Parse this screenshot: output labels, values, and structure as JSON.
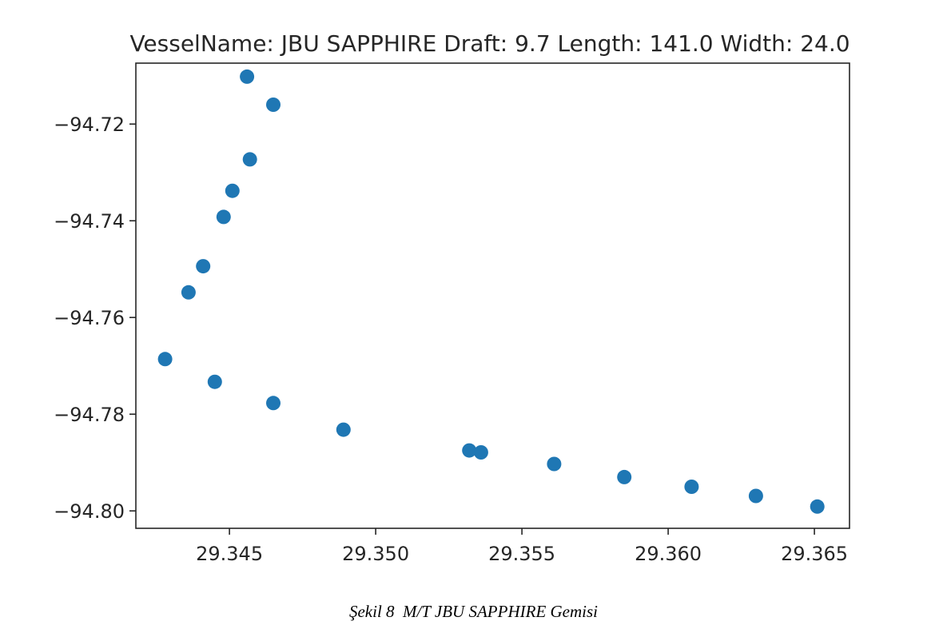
{
  "chart_data": {
    "type": "scatter",
    "title": "VesselName: JBU SAPPHIRE Draft: 9.7 Length: 141.0 Width: 24.0",
    "xlabel": "",
    "ylabel": "",
    "xlim": [
      29.3418,
      29.3662
    ],
    "ylim": [
      -94.8036,
      -94.7074
    ],
    "xticks": [
      29.345,
      29.35,
      29.355,
      29.36,
      29.365
    ],
    "xtick_labels": [
      "29.345",
      "29.350",
      "29.355",
      "29.360",
      "29.365"
    ],
    "yticks": [
      -94.72,
      -94.74,
      -94.76,
      -94.78,
      -94.8
    ],
    "ytick_labels": [
      "−94.72",
      "−94.74",
      "−94.76",
      "−94.78",
      "−94.80"
    ],
    "grid": false,
    "marker_color": "#1f77b4",
    "points": [
      {
        "x": 29.3456,
        "y": -94.7102
      },
      {
        "x": 29.3465,
        "y": -94.716
      },
      {
        "x": 29.3457,
        "y": -94.7273
      },
      {
        "x": 29.3451,
        "y": -94.7338
      },
      {
        "x": 29.3448,
        "y": -94.7392
      },
      {
        "x": 29.3441,
        "y": -94.7494
      },
      {
        "x": 29.3436,
        "y": -94.7548
      },
      {
        "x": 29.3428,
        "y": -94.7686
      },
      {
        "x": 29.3445,
        "y": -94.7733
      },
      {
        "x": 29.3465,
        "y": -94.7777
      },
      {
        "x": 29.3489,
        "y": -94.7832
      },
      {
        "x": 29.3532,
        "y": -94.7875
      },
      {
        "x": 29.3536,
        "y": -94.7879
      },
      {
        "x": 29.3561,
        "y": -94.7903
      },
      {
        "x": 29.3585,
        "y": -94.793
      },
      {
        "x": 29.3608,
        "y": -94.795
      },
      {
        "x": 29.363,
        "y": -94.7969
      },
      {
        "x": 29.3651,
        "y": -94.7991
      }
    ]
  },
  "caption": "Şekil 8  M/T JBU SAPPHIRE Gemisi"
}
